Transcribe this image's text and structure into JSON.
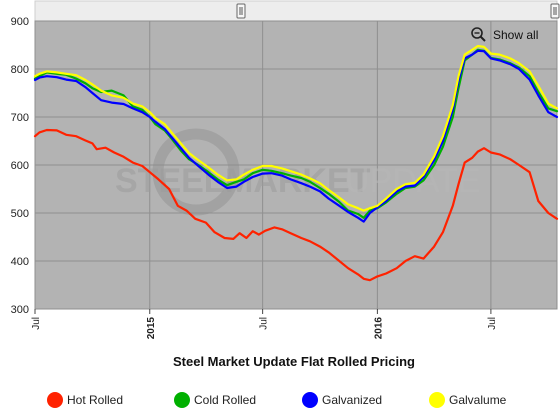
{
  "chart_data": {
    "type": "line",
    "title": "Steel Market Update Flat Rolled Pricing",
    "watermark": [
      "STEEL",
      "MARKET",
      "UPDATE"
    ],
    "show_all_label": "Show all",
    "ylim": [
      300,
      900
    ],
    "yticks": [
      300,
      400,
      500,
      600,
      700,
      800,
      900
    ],
    "xlim": [
      "2014-07-01",
      "2016-10-15"
    ],
    "xticks": [
      {
        "date": "2014-07-01",
        "label": "Jul",
        "bold": false
      },
      {
        "date": "2015-01-01",
        "label": "2015",
        "bold": true
      },
      {
        "date": "2015-07-01",
        "label": "Jul",
        "bold": false
      },
      {
        "date": "2016-01-01",
        "label": "2016",
        "bold": true
      },
      {
        "date": "2016-07-01",
        "label": "Jul",
        "bold": false
      }
    ],
    "grid": true,
    "legend_position": "bottom",
    "series": [
      {
        "name": "Hot Rolled",
        "color": "#ff2200",
        "points": [
          [
            "2014-07-01",
            660
          ],
          [
            "2014-07-08",
            668
          ],
          [
            "2014-07-20",
            673
          ],
          [
            "2014-08-05",
            672
          ],
          [
            "2014-08-20",
            663
          ],
          [
            "2014-09-05",
            660
          ],
          [
            "2014-09-20",
            651
          ],
          [
            "2014-10-01",
            645
          ],
          [
            "2014-10-08",
            633
          ],
          [
            "2014-10-22",
            636
          ],
          [
            "2014-11-05",
            626
          ],
          [
            "2014-11-20",
            617
          ],
          [
            "2014-12-05",
            605
          ],
          [
            "2014-12-20",
            598
          ],
          [
            "2015-01-01",
            585
          ],
          [
            "2015-01-15",
            570
          ],
          [
            "2015-02-01",
            550
          ],
          [
            "2015-02-15",
            515
          ],
          [
            "2015-03-01",
            505
          ],
          [
            "2015-03-15",
            488
          ],
          [
            "2015-04-01",
            480
          ],
          [
            "2015-04-15",
            460
          ],
          [
            "2015-05-01",
            448
          ],
          [
            "2015-05-15",
            446
          ],
          [
            "2015-05-25",
            458
          ],
          [
            "2015-06-05",
            448
          ],
          [
            "2015-06-15",
            462
          ],
          [
            "2015-06-25",
            455
          ],
          [
            "2015-07-05",
            463
          ],
          [
            "2015-07-20",
            470
          ],
          [
            "2015-08-01",
            466
          ],
          [
            "2015-08-15",
            458
          ],
          [
            "2015-09-01",
            448
          ],
          [
            "2015-09-15",
            441
          ],
          [
            "2015-10-01",
            430
          ],
          [
            "2015-10-15",
            418
          ],
          [
            "2015-11-01",
            400
          ],
          [
            "2015-11-15",
            385
          ],
          [
            "2015-12-01",
            372
          ],
          [
            "2015-12-10",
            363
          ],
          [
            "2015-12-20",
            360
          ],
          [
            "2016-01-01",
            368
          ],
          [
            "2016-01-15",
            374
          ],
          [
            "2016-02-01",
            385
          ],
          [
            "2016-02-15",
            400
          ],
          [
            "2016-03-01",
            410
          ],
          [
            "2016-03-15",
            405
          ],
          [
            "2016-04-01",
            430
          ],
          [
            "2016-04-15",
            460
          ],
          [
            "2016-05-01",
            515
          ],
          [
            "2016-05-10",
            560
          ],
          [
            "2016-05-20",
            605
          ],
          [
            "2016-06-01",
            615
          ],
          [
            "2016-06-10",
            628
          ],
          [
            "2016-06-20",
            635
          ],
          [
            "2016-07-01",
            626
          ],
          [
            "2016-07-15",
            622
          ],
          [
            "2016-08-01",
            612
          ],
          [
            "2016-08-15",
            600
          ],
          [
            "2016-09-01",
            585
          ],
          [
            "2016-09-15",
            525
          ],
          [
            "2016-10-01",
            500
          ],
          [
            "2016-10-15",
            488
          ]
        ]
      },
      {
        "name": "Cold Rolled",
        "color": "#00b000",
        "points": [
          [
            "2014-07-01",
            780
          ],
          [
            "2014-07-08",
            785
          ],
          [
            "2014-07-20",
            793
          ],
          [
            "2014-08-05",
            790
          ],
          [
            "2014-08-20",
            788
          ],
          [
            "2014-09-05",
            780
          ],
          [
            "2014-09-20",
            770
          ],
          [
            "2014-10-01",
            760
          ],
          [
            "2014-10-15",
            752
          ],
          [
            "2014-11-01",
            755
          ],
          [
            "2014-11-20",
            745
          ],
          [
            "2014-12-05",
            722
          ],
          [
            "2014-12-20",
            715
          ],
          [
            "2015-01-01",
            700
          ],
          [
            "2015-01-10",
            685
          ],
          [
            "2015-01-25",
            672
          ],
          [
            "2015-02-05",
            655
          ],
          [
            "2015-02-20",
            630
          ],
          [
            "2015-03-05",
            612
          ],
          [
            "2015-03-20",
            600
          ],
          [
            "2015-04-05",
            585
          ],
          [
            "2015-04-20",
            570
          ],
          [
            "2015-05-05",
            558
          ],
          [
            "2015-05-20",
            565
          ],
          [
            "2015-06-01",
            570
          ],
          [
            "2015-06-15",
            583
          ],
          [
            "2015-07-01",
            590
          ],
          [
            "2015-07-15",
            588
          ],
          [
            "2015-08-01",
            583
          ],
          [
            "2015-08-15",
            578
          ],
          [
            "2015-09-01",
            573
          ],
          [
            "2015-09-15",
            565
          ],
          [
            "2015-10-01",
            552
          ],
          [
            "2015-10-15",
            540
          ],
          [
            "2015-11-01",
            523
          ],
          [
            "2015-11-15",
            505
          ],
          [
            "2015-12-01",
            498
          ],
          [
            "2015-12-10",
            490
          ],
          [
            "2015-12-20",
            505
          ],
          [
            "2016-01-01",
            510
          ],
          [
            "2016-01-15",
            522
          ],
          [
            "2016-02-01",
            540
          ],
          [
            "2016-02-15",
            552
          ],
          [
            "2016-03-01",
            555
          ],
          [
            "2016-03-15",
            568
          ],
          [
            "2016-04-01",
            600
          ],
          [
            "2016-04-15",
            638
          ],
          [
            "2016-05-01",
            700
          ],
          [
            "2016-05-10",
            760
          ],
          [
            "2016-05-20",
            818
          ],
          [
            "2016-06-01",
            830
          ],
          [
            "2016-06-10",
            840
          ],
          [
            "2016-06-20",
            838
          ],
          [
            "2016-07-01",
            823
          ],
          [
            "2016-07-15",
            820
          ],
          [
            "2016-08-01",
            812
          ],
          [
            "2016-08-15",
            803
          ],
          [
            "2016-09-01",
            785
          ],
          [
            "2016-09-15",
            752
          ],
          [
            "2016-10-01",
            718
          ],
          [
            "2016-10-15",
            712
          ]
        ]
      },
      {
        "name": "Galvanized",
        "color": "#0000ff",
        "points": [
          [
            "2014-07-01",
            777
          ],
          [
            "2014-07-08",
            782
          ],
          [
            "2014-07-20",
            785
          ],
          [
            "2014-08-05",
            783
          ],
          [
            "2014-08-20",
            778
          ],
          [
            "2014-09-05",
            775
          ],
          [
            "2014-09-20",
            762
          ],
          [
            "2014-10-01",
            750
          ],
          [
            "2014-10-15",
            735
          ],
          [
            "2014-11-01",
            730
          ],
          [
            "2014-11-20",
            727
          ],
          [
            "2014-12-05",
            718
          ],
          [
            "2014-12-20",
            710
          ],
          [
            "2015-01-01",
            700
          ],
          [
            "2015-01-10",
            690
          ],
          [
            "2015-01-25",
            675
          ],
          [
            "2015-02-05",
            658
          ],
          [
            "2015-02-20",
            635
          ],
          [
            "2015-03-05",
            615
          ],
          [
            "2015-03-20",
            598
          ],
          [
            "2015-04-05",
            580
          ],
          [
            "2015-04-20",
            565
          ],
          [
            "2015-05-05",
            552
          ],
          [
            "2015-05-20",
            555
          ],
          [
            "2015-06-01",
            565
          ],
          [
            "2015-06-15",
            575
          ],
          [
            "2015-07-01",
            582
          ],
          [
            "2015-07-15",
            583
          ],
          [
            "2015-08-01",
            578
          ],
          [
            "2015-08-15",
            570
          ],
          [
            "2015-09-01",
            562
          ],
          [
            "2015-09-15",
            555
          ],
          [
            "2015-10-01",
            545
          ],
          [
            "2015-10-15",
            530
          ],
          [
            "2015-11-01",
            515
          ],
          [
            "2015-11-15",
            502
          ],
          [
            "2015-12-01",
            490
          ],
          [
            "2015-12-10",
            482
          ],
          [
            "2015-12-20",
            500
          ],
          [
            "2016-01-01",
            512
          ],
          [
            "2016-01-15",
            525
          ],
          [
            "2016-02-01",
            545
          ],
          [
            "2016-02-15",
            555
          ],
          [
            "2016-03-01",
            557
          ],
          [
            "2016-03-15",
            575
          ],
          [
            "2016-04-01",
            610
          ],
          [
            "2016-04-15",
            650
          ],
          [
            "2016-05-01",
            715
          ],
          [
            "2016-05-10",
            775
          ],
          [
            "2016-05-20",
            822
          ],
          [
            "2016-06-01",
            830
          ],
          [
            "2016-06-10",
            838
          ],
          [
            "2016-06-20",
            837
          ],
          [
            "2016-07-01",
            822
          ],
          [
            "2016-07-15",
            818
          ],
          [
            "2016-08-01",
            810
          ],
          [
            "2016-08-15",
            800
          ],
          [
            "2016-09-01",
            778
          ],
          [
            "2016-09-15",
            745
          ],
          [
            "2016-10-01",
            710
          ],
          [
            "2016-10-15",
            700
          ]
        ]
      },
      {
        "name": "Galvalume",
        "color": "#ffff00",
        "points": [
          [
            "2014-07-01",
            785
          ],
          [
            "2014-07-08",
            790
          ],
          [
            "2014-07-20",
            795
          ],
          [
            "2014-08-05",
            793
          ],
          [
            "2014-08-20",
            790
          ],
          [
            "2014-09-05",
            787
          ],
          [
            "2014-09-20",
            777
          ],
          [
            "2014-10-01",
            768
          ],
          [
            "2014-10-15",
            755
          ],
          [
            "2014-11-01",
            745
          ],
          [
            "2014-11-20",
            740
          ],
          [
            "2014-12-05",
            728
          ],
          [
            "2014-12-20",
            722
          ],
          [
            "2015-01-01",
            710
          ],
          [
            "2015-01-10",
            698
          ],
          [
            "2015-01-25",
            685
          ],
          [
            "2015-02-05",
            668
          ],
          [
            "2015-02-20",
            645
          ],
          [
            "2015-03-05",
            625
          ],
          [
            "2015-03-20",
            610
          ],
          [
            "2015-04-05",
            595
          ],
          [
            "2015-04-20",
            580
          ],
          [
            "2015-05-05",
            568
          ],
          [
            "2015-05-20",
            570
          ],
          [
            "2015-06-01",
            580
          ],
          [
            "2015-06-15",
            590
          ],
          [
            "2015-07-01",
            598
          ],
          [
            "2015-07-15",
            598
          ],
          [
            "2015-08-01",
            593
          ],
          [
            "2015-08-15",
            587
          ],
          [
            "2015-09-01",
            580
          ],
          [
            "2015-09-15",
            572
          ],
          [
            "2015-10-01",
            562
          ],
          [
            "2015-10-15",
            548
          ],
          [
            "2015-11-01",
            532
          ],
          [
            "2015-11-15",
            518
          ],
          [
            "2015-12-01",
            510
          ],
          [
            "2015-12-10",
            505
          ],
          [
            "2015-12-20",
            510
          ],
          [
            "2016-01-01",
            515
          ],
          [
            "2016-01-15",
            530
          ],
          [
            "2016-02-01",
            550
          ],
          [
            "2016-02-15",
            560
          ],
          [
            "2016-03-01",
            563
          ],
          [
            "2016-03-15",
            580
          ],
          [
            "2016-04-01",
            618
          ],
          [
            "2016-04-15",
            660
          ],
          [
            "2016-05-01",
            725
          ],
          [
            "2016-05-10",
            785
          ],
          [
            "2016-05-20",
            830
          ],
          [
            "2016-06-01",
            840
          ],
          [
            "2016-06-10",
            848
          ],
          [
            "2016-06-20",
            846
          ],
          [
            "2016-07-01",
            832
          ],
          [
            "2016-07-15",
            830
          ],
          [
            "2016-08-01",
            822
          ],
          [
            "2016-08-15",
            812
          ],
          [
            "2016-09-01",
            795
          ],
          [
            "2016-09-15",
            765
          ],
          [
            "2016-10-01",
            728
          ],
          [
            "2016-10-15",
            718
          ]
        ]
      }
    ]
  }
}
